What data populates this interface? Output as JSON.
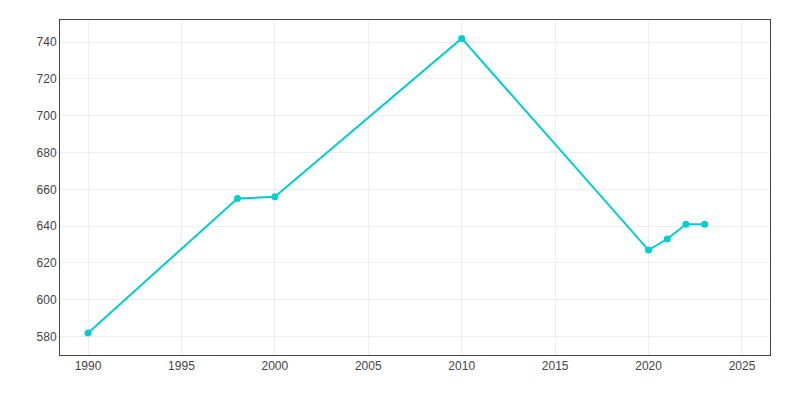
{
  "chart_data": {
    "type": "line",
    "x": [
      1990,
      1998,
      2000,
      2010,
      2020,
      2021,
      2022,
      2023
    ],
    "values": [
      582,
      655,
      656,
      742,
      627,
      633,
      641,
      641
    ],
    "color": "#00CED1",
    "marker": "circle",
    "xlim": [
      1988.5,
      2026.5
    ],
    "xticks": [
      1990,
      1995,
      2000,
      2005,
      2010,
      2015,
      2020,
      2025
    ],
    "ylim": [
      570,
      752
    ],
    "yticks": [
      580,
      600,
      620,
      640,
      660,
      680,
      700,
      720,
      740
    ],
    "grid": true
  }
}
